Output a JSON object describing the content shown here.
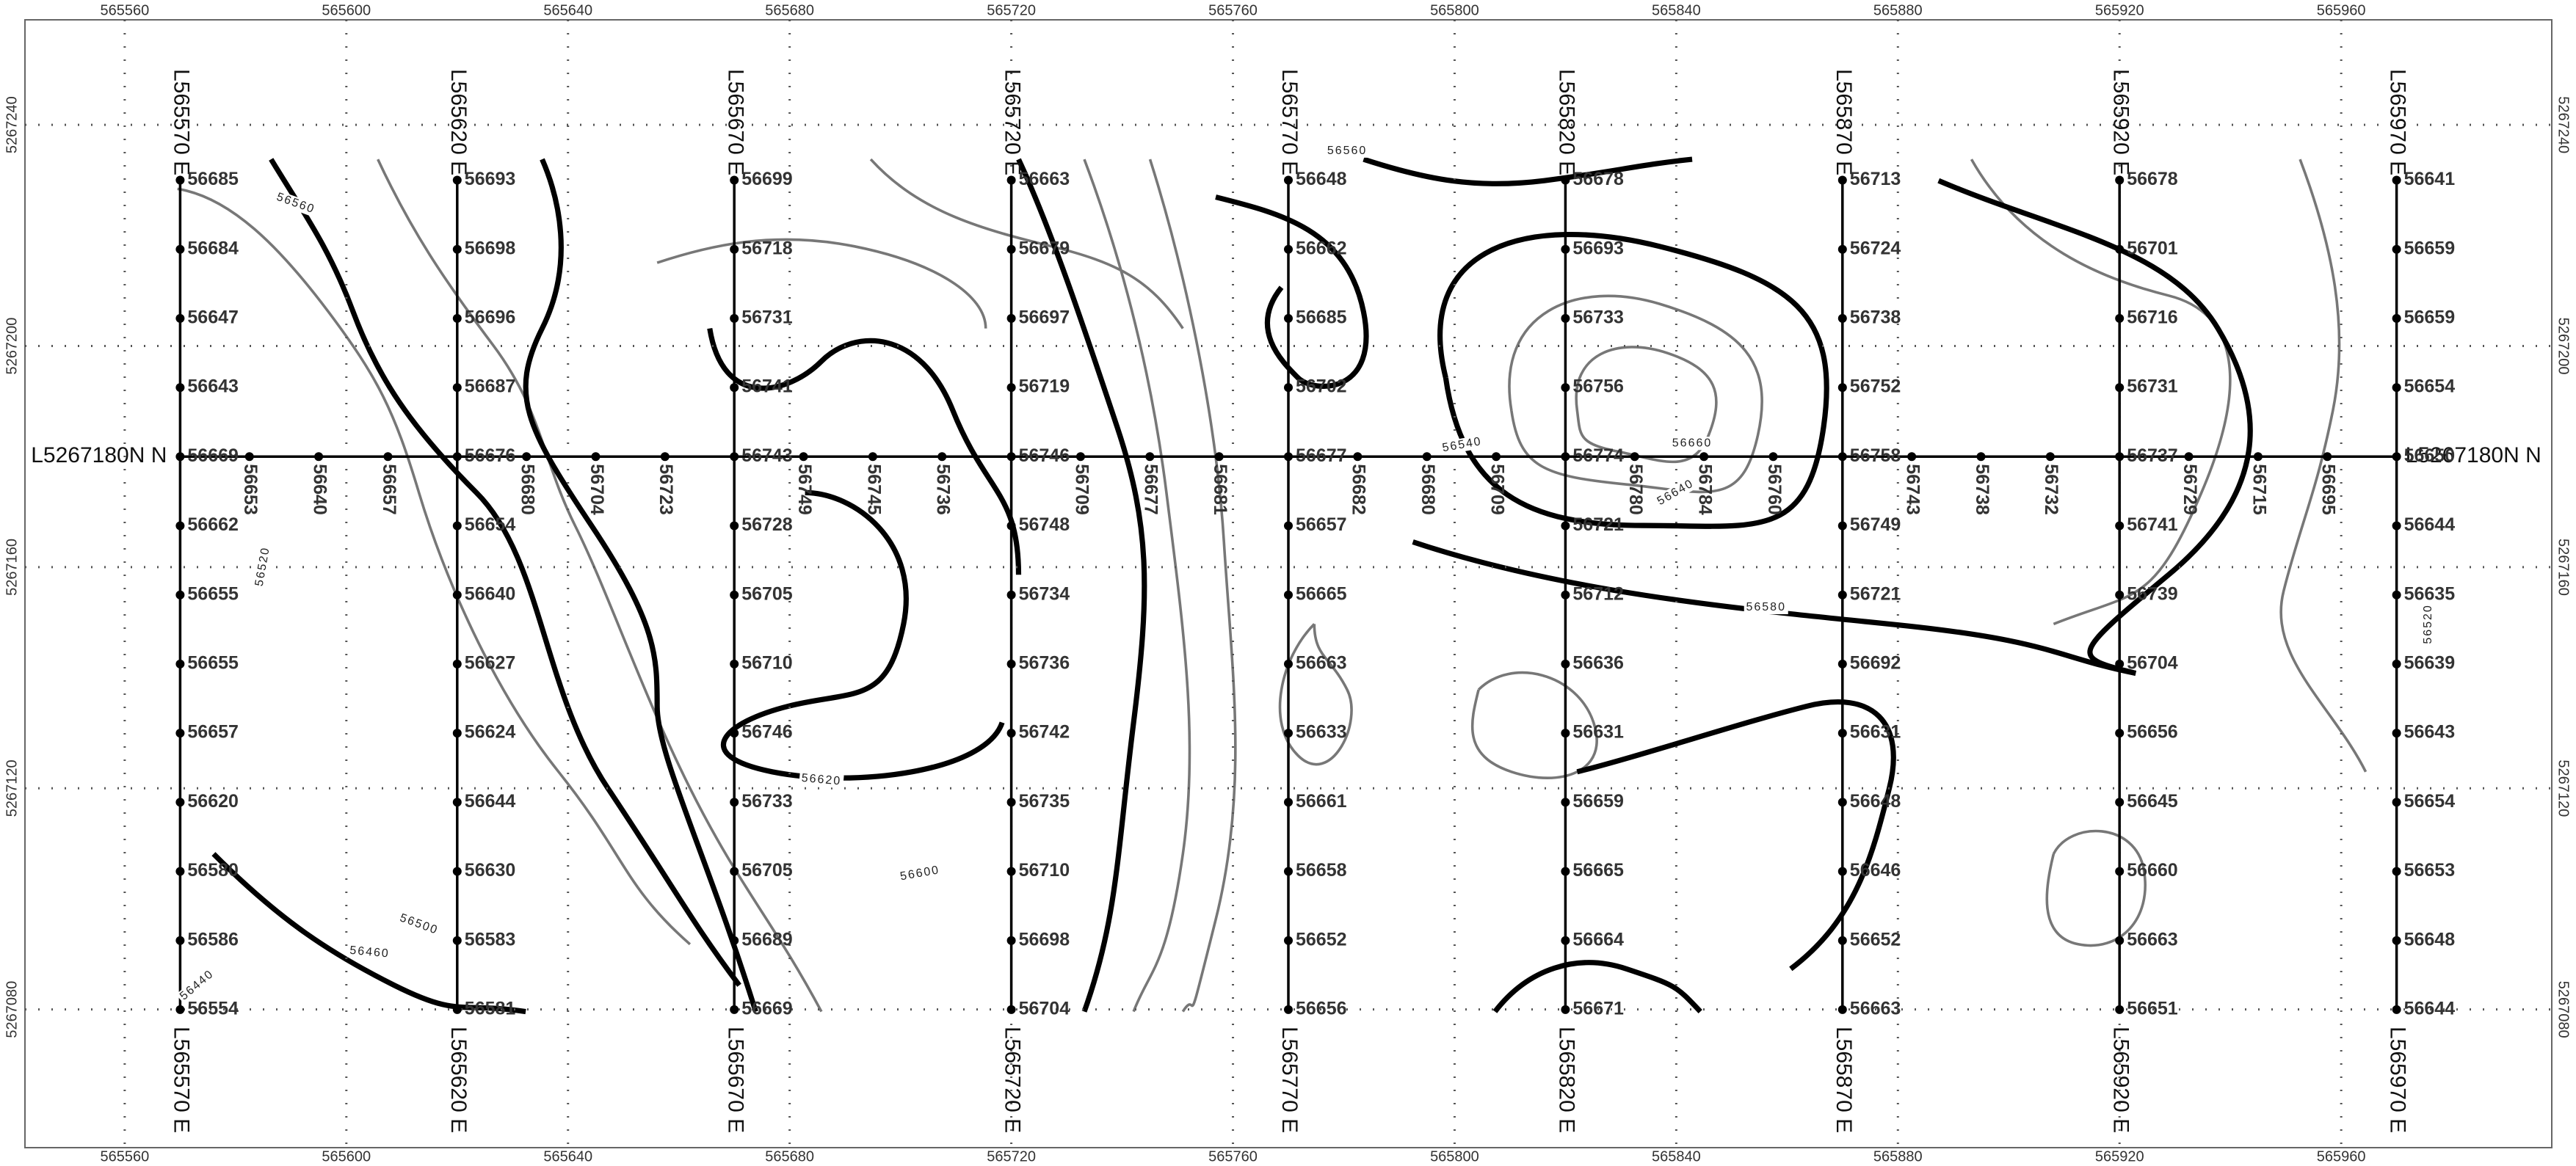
{
  "map": {
    "xlim": [
      565542,
      565998
    ],
    "ylim": [
      5267055,
      5267259
    ],
    "xticks": [
      565560,
      565600,
      565640,
      565680,
      565720,
      565760,
      565800,
      565840,
      565880,
      565920,
      565960
    ],
    "yticks": [
      5267240,
      5267200,
      5267160,
      5267120,
      5267080
    ],
    "lines": [
      {
        "label": "L565570 E",
        "stations": [
          56685,
          56684,
          56647,
          56643,
          56669,
          56662,
          56655,
          56655,
          56657,
          56620,
          56580,
          56586,
          56554
        ]
      },
      {
        "label": "L565620 E",
        "stations": [
          56693,
          56698,
          56696,
          56687,
          56676,
          56654,
          56640,
          56627,
          56624,
          56644,
          56630,
          56583,
          56581
        ]
      },
      {
        "label": "L565670 E",
        "stations": [
          56699,
          56718,
          56731,
          56741,
          56743,
          56728,
          56705,
          56710,
          56746,
          56733,
          56705,
          56689,
          56669
        ]
      },
      {
        "label": "L565720 E",
        "stations": [
          56663,
          56679,
          56697,
          56719,
          56746,
          56748,
          56734,
          56736,
          56742,
          56735,
          56710,
          56698,
          56704
        ]
      },
      {
        "label": "L565770 E",
        "stations": [
          56648,
          56662,
          56685,
          56702,
          56677,
          56657,
          56665,
          56663,
          56633,
          56661,
          56658,
          56652,
          56656
        ]
      },
      {
        "label": "L565820 E",
        "stations": [
          56678,
          56693,
          56733,
          56756,
          56774,
          56721,
          56712,
          56636,
          56631,
          56659,
          56665,
          56664,
          56671
        ]
      },
      {
        "label": "L565870 E",
        "stations": [
          56713,
          56724,
          56738,
          56752,
          56758,
          56749,
          56721,
          56692,
          56631,
          56648,
          56646,
          56652,
          56663
        ]
      },
      {
        "label": "L565920 E",
        "stations": [
          56678,
          56701,
          56716,
          56731,
          56737,
          56741,
          56739,
          56704,
          56656,
          56645,
          56660,
          56663,
          56651
        ]
      },
      {
        "label": "L565970 E",
        "stations": [
          56641,
          56659,
          56659,
          56654,
          56650,
          56644,
          56635,
          56639,
          56643,
          56654,
          56653,
          56648,
          56644
        ]
      }
    ],
    "tie_line": {
      "label": "L5267180N N",
      "stations": [
        56653,
        56640,
        56657,
        56680,
        56704,
        56723,
        56749,
        56745,
        56736,
        56709,
        56677,
        56681,
        56682,
        56680,
        56709,
        56780,
        56784,
        56760,
        56743,
        56738,
        56732,
        56729,
        56715,
        56695
      ]
    },
    "contour_labels": [
      56560,
      56520,
      56540,
      56600,
      56620,
      56580,
      56640,
      56660,
      56460,
      56440,
      56500,
      56560,
      56520
    ]
  }
}
